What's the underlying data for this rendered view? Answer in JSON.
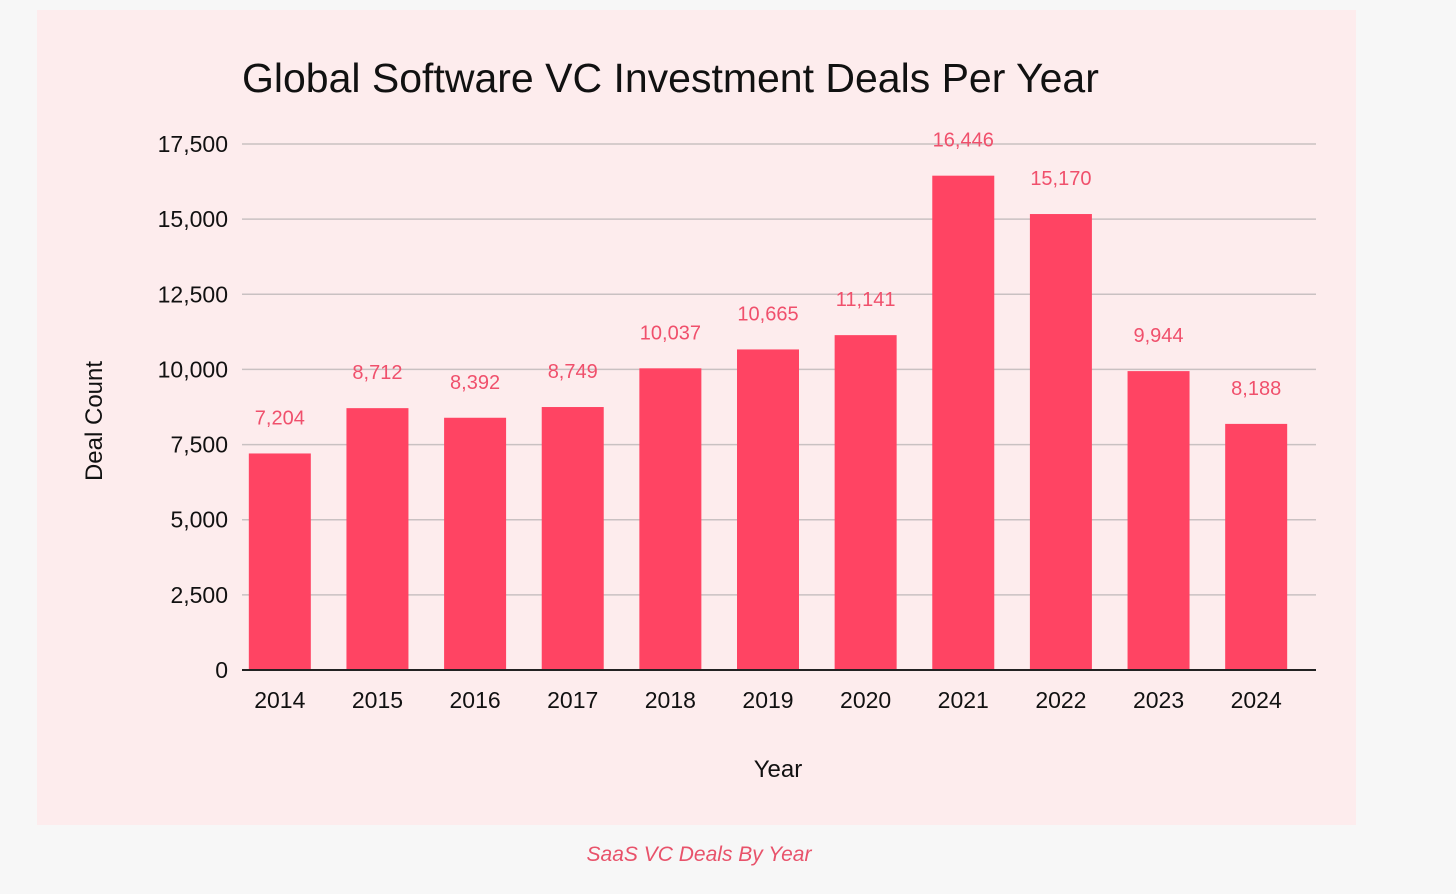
{
  "colors": {
    "bar": "#ff4463",
    "data_label": "#f0506c",
    "grid": "#c9c1c2",
    "axis": "#222222",
    "text": "#111111",
    "panel_bg": "#fdeced",
    "page_bg": "#f7f7f7",
    "caption": "#e8526a"
  },
  "chart_data": {
    "type": "bar",
    "title": "Global Software VC Investment Deals Per Year",
    "xlabel": "Year",
    "ylabel": "Deal Count",
    "categories": [
      "2014",
      "2015",
      "2016",
      "2017",
      "2018",
      "2019",
      "2020",
      "2021",
      "2022",
      "2023",
      "2024"
    ],
    "values": [
      7204,
      8712,
      8392,
      8749,
      10037,
      10665,
      11141,
      16446,
      15170,
      9944,
      8188
    ],
    "data_labels": [
      "7,204",
      "8,712",
      "8,392",
      "8,749",
      "10,037",
      "10,665",
      "11,141",
      "16,446",
      "15,170",
      "9,944",
      "8,188"
    ],
    "ylim": [
      0,
      17500
    ],
    "yticks": [
      0,
      2500,
      5000,
      7500,
      10000,
      12500,
      15000,
      17500
    ],
    "ytick_labels": [
      "0",
      "2,500",
      "5,000",
      "7,500",
      "10,000",
      "12,500",
      "15,000",
      "17,500"
    ],
    "grid": true,
    "legend": "none"
  },
  "caption": "SaaS VC Deals By Year"
}
